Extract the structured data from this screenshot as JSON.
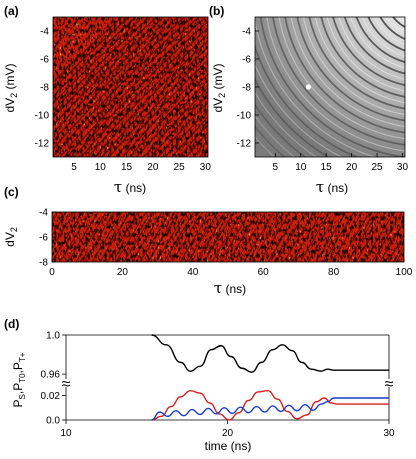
{
  "chart_data": [
    {
      "panel": "(a)",
      "type": "heatmap",
      "colormap": "red-yellow-black fringe map",
      "xlabel": "τ (ns)",
      "ylabel": "dV2 (mV)",
      "xlim": [
        1,
        30.5
      ],
      "ylim": [
        -13,
        -3
      ],
      "xticks": [
        "5",
        "10",
        "15",
        "20",
        "25",
        "30"
      ],
      "yticks": [
        "-4",
        "-6",
        "-8",
        "-10",
        "-12"
      ]
    },
    {
      "panel": "(b)",
      "type": "heatmap",
      "colormap": "grayscale simulated fringes",
      "xlabel": "τ (ns)",
      "ylabel": "dV2 (mV)",
      "xlim": [
        1,
        30.5
      ],
      "ylim": [
        -13,
        -3
      ],
      "xticks": [
        "5",
        "10",
        "15",
        "20",
        "25",
        "30"
      ],
      "yticks": [
        "-4",
        "-6",
        "-8",
        "-10",
        "-12"
      ],
      "marker": {
        "x": 11.5,
        "y": -8
      }
    },
    {
      "panel": "(c)",
      "type": "heatmap",
      "colormap": "red-yellow-black fringe map",
      "xlabel": "τ (ns)",
      "ylabel": "dV2 (mV)",
      "xlim": [
        0,
        100
      ],
      "ylim": [
        -8,
        -4
      ],
      "xticks": [
        "0",
        "20",
        "40",
        "60",
        "80",
        "100"
      ],
      "yticks": [
        "-4",
        "-6",
        "-8"
      ]
    },
    {
      "panel": "(d)",
      "type": "line",
      "xlabel": "time (ns)",
      "ylabel": "P_S, P_T0, P_T+",
      "xlim": [
        10,
        30
      ],
      "xticks": [
        "10",
        "20",
        "30"
      ],
      "upper": {
        "ylim": [
          0.955,
          1.0
        ],
        "yticks": [
          "1.0",
          "0.96"
        ],
        "series": [
          {
            "color": "#000000",
            "x": [
              15.3,
              16.2,
              17.1,
              17.7,
              18.3,
              19.0,
              19.6,
              20.2,
              20.9,
              21.5,
              22.1,
              22.8,
              23.4,
              24.0,
              24.6,
              25.2,
              25.8,
              26.2,
              26.6,
              30.0
            ],
            "y": [
              1.0,
              0.99,
              0.972,
              0.963,
              0.968,
              0.985,
              0.989,
              0.978,
              0.966,
              0.962,
              0.972,
              0.985,
              0.99,
              0.984,
              0.972,
              0.965,
              0.963,
              0.965,
              0.964,
              0.964
            ]
          }
        ]
      },
      "lower": {
        "ylim": [
          0,
          0.027
        ],
        "yticks": [
          "0.02",
          "0.0"
        ],
        "series": [
          {
            "color": "#d42020",
            "x": [
              15.3,
              15.9,
              16.5,
              17.1,
              17.7,
              18.3,
              18.9,
              19.5,
              20.1,
              20.7,
              21.3,
              21.9,
              22.5,
              23.1,
              23.7,
              24.3,
              24.9,
              25.5,
              26.0,
              26.4,
              26.8,
              30.0
            ],
            "y": [
              0.0,
              0.003,
              0.011,
              0.019,
              0.024,
              0.022,
              0.014,
              0.005,
              0.0,
              0.006,
              0.016,
              0.023,
              0.024,
              0.017,
              0.007,
              0.001,
              0.004,
              0.015,
              0.018,
              0.014,
              0.013,
              0.013
            ]
          },
          {
            "color": "#1a3ccc",
            "x": [
              15.3,
              15.8,
              16.3,
              16.8,
              17.3,
              17.8,
              18.3,
              18.8,
              19.3,
              19.8,
              20.3,
              20.8,
              21.3,
              21.8,
              22.3,
              22.8,
              23.3,
              23.8,
              24.3,
              24.8,
              25.3,
              25.8,
              26.2,
              26.6,
              30.0
            ],
            "y": [
              0.0,
              0.0065,
              0.003,
              0.0075,
              0.0035,
              0.0085,
              0.0045,
              0.0095,
              0.005,
              0.01,
              0.0055,
              0.0105,
              0.006,
              0.011,
              0.0065,
              0.0115,
              0.007,
              0.012,
              0.0075,
              0.0125,
              0.008,
              0.013,
              0.015,
              0.018,
              0.018
            ]
          }
        ]
      }
    }
  ],
  "labels": {
    "panel_a": "(a)",
    "panel_b": "(b)",
    "panel_c": "(c)",
    "panel_d": "(d)",
    "tau_unit": "(ns)",
    "dv_unit": "(mV)",
    "time_label": "time (ns)",
    "axis_break": "≈"
  }
}
